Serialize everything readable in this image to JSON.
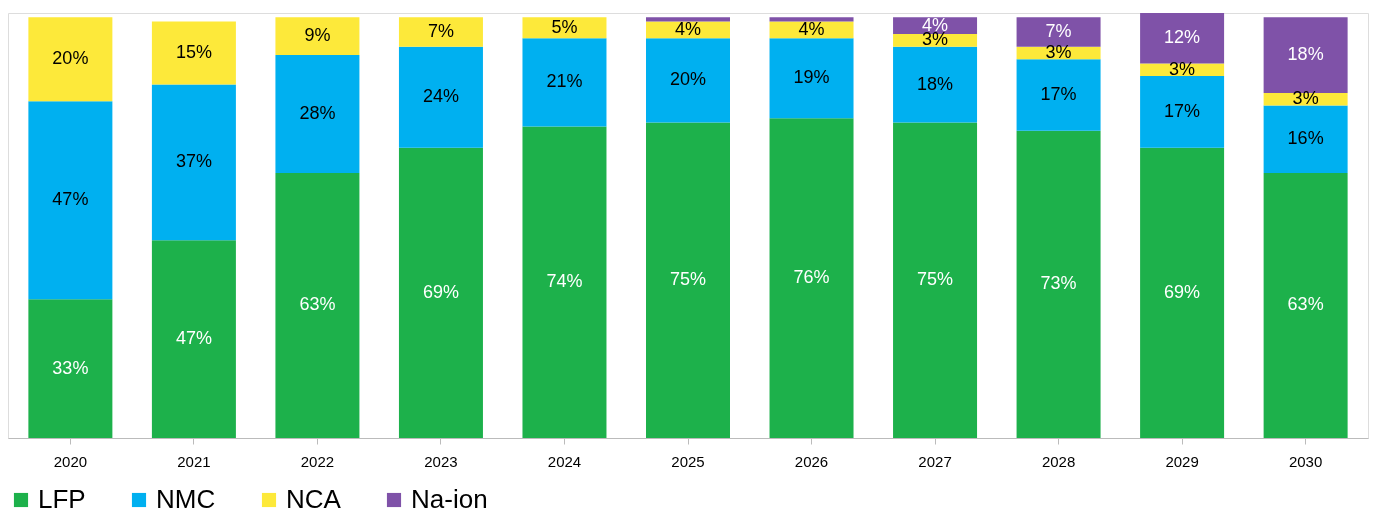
{
  "chart_data": {
    "type": "bar",
    "stacked": true,
    "categories": [
      "2020",
      "2021",
      "2022",
      "2023",
      "2024",
      "2025",
      "2026",
      "2027",
      "2028",
      "2029",
      "2030"
    ],
    "series": [
      {
        "name": "LFP",
        "color": "#1db14b",
        "values": [
          33,
          47,
          63,
          69,
          74,
          75,
          76,
          75,
          73,
          69,
          63
        ],
        "value_labels": [
          "33%",
          "47%",
          "63%",
          "69%",
          "74%",
          "75%",
          "76%",
          "75%",
          "73%",
          "69%",
          "63%"
        ]
      },
      {
        "name": "NMC",
        "color": "#00b0f0",
        "values": [
          47,
          37,
          28,
          24,
          21,
          20,
          19,
          18,
          17,
          17,
          16
        ],
        "value_labels": [
          "47%",
          "37%",
          "28%",
          "24%",
          "21%",
          "20%",
          "19%",
          "18%",
          "17%",
          "17%",
          "16%"
        ]
      },
      {
        "name": "NCA",
        "color": "#fde93a",
        "values": [
          20,
          15,
          9,
          7,
          5,
          4,
          4,
          3,
          3,
          3,
          3
        ],
        "value_labels": [
          "20%",
          "15%",
          "9%",
          "7%",
          "5%",
          "4%",
          "4%",
          "3%",
          "3%",
          "3%",
          "3%"
        ]
      },
      {
        "name": "Na-ion",
        "color": "#7f52a8",
        "values": [
          0,
          0,
          0,
          0,
          0,
          1,
          1,
          4,
          7,
          12,
          18
        ],
        "value_labels": [
          null,
          null,
          null,
          null,
          null,
          null,
          null,
          "4%",
          "7%",
          "12%",
          "18%"
        ]
      }
    ],
    "legend": "bottom left",
    "grid": false
  }
}
